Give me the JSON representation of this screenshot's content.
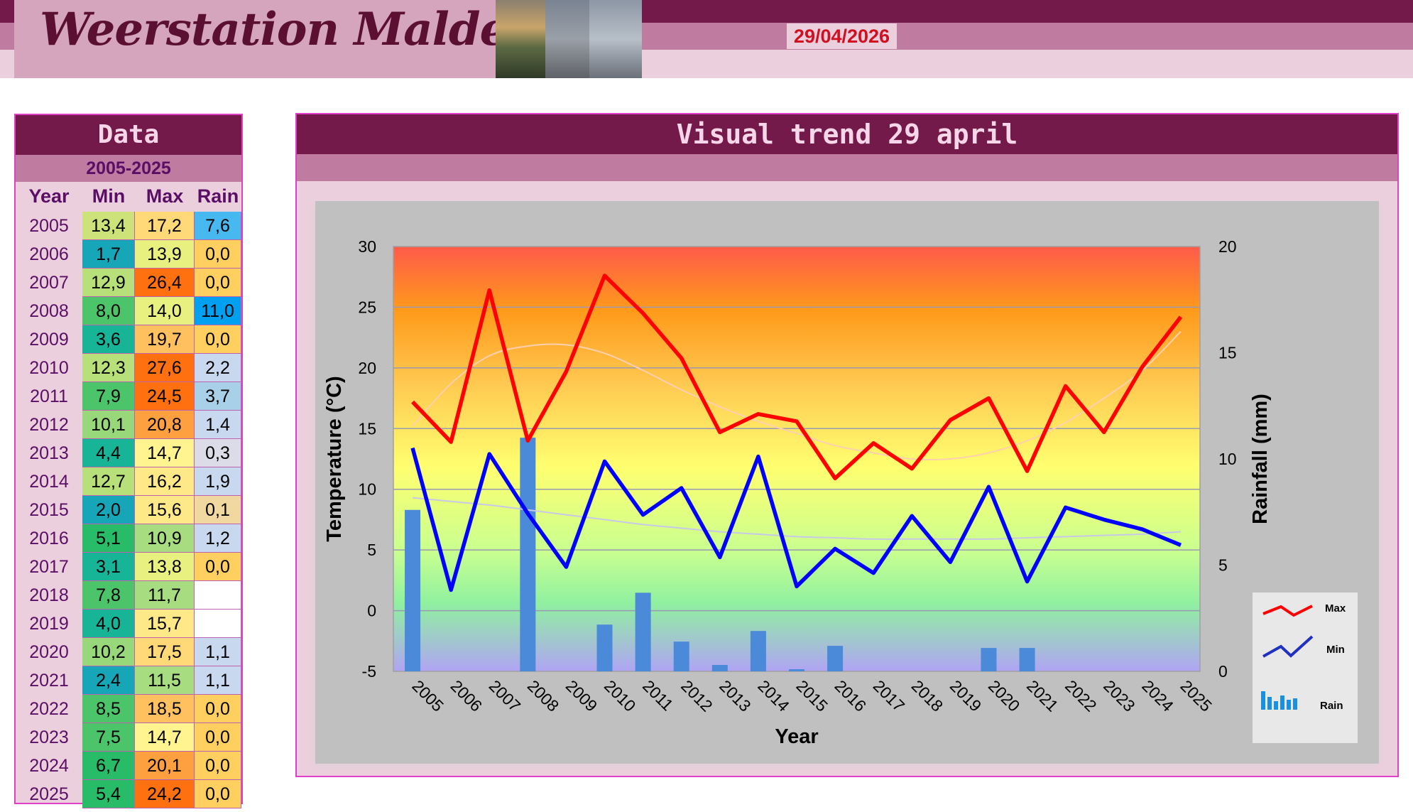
{
  "header": {
    "site_title": "Weerstation Malderen",
    "date": "29/04/2026"
  },
  "data_panel": {
    "title": "Data",
    "range": "2005-2025",
    "columns": [
      "Year",
      "Min",
      "Max",
      "Rain"
    ],
    "rows": [
      {
        "year": "2005",
        "min": "13,4",
        "max": "17,2",
        "rain": "7,6"
      },
      {
        "year": "2006",
        "min": "1,7",
        "max": "13,9",
        "rain": "0,0"
      },
      {
        "year": "2007",
        "min": "12,9",
        "max": "26,4",
        "rain": "0,0"
      },
      {
        "year": "2008",
        "min": "8,0",
        "max": "14,0",
        "rain": "11,0"
      },
      {
        "year": "2009",
        "min": "3,6",
        "max": "19,7",
        "rain": "0,0"
      },
      {
        "year": "2010",
        "min": "12,3",
        "max": "27,6",
        "rain": "2,2"
      },
      {
        "year": "2011",
        "min": "7,9",
        "max": "24,5",
        "rain": "3,7"
      },
      {
        "year": "2012",
        "min": "10,1",
        "max": "20,8",
        "rain": "1,4"
      },
      {
        "year": "2013",
        "min": "4,4",
        "max": "14,7",
        "rain": "0,3"
      },
      {
        "year": "2014",
        "min": "12,7",
        "max": "16,2",
        "rain": "1,9"
      },
      {
        "year": "2015",
        "min": "2,0",
        "max": "15,6",
        "rain": "0,1"
      },
      {
        "year": "2016",
        "min": "5,1",
        "max": "10,9",
        "rain": "1,2"
      },
      {
        "year": "2017",
        "min": "3,1",
        "max": "13,8",
        "rain": "0,0"
      },
      {
        "year": "2018",
        "min": "7,8",
        "max": "11,7",
        "rain": ""
      },
      {
        "year": "2019",
        "min": "4,0",
        "max": "15,7",
        "rain": ""
      },
      {
        "year": "2020",
        "min": "10,2",
        "max": "17,5",
        "rain": "1,1"
      },
      {
        "year": "2021",
        "min": "2,4",
        "max": "11,5",
        "rain": "1,1"
      },
      {
        "year": "2022",
        "min": "8,5",
        "max": "18,5",
        "rain": "0,0"
      },
      {
        "year": "2023",
        "min": "7,5",
        "max": "14,7",
        "rain": "0,0"
      },
      {
        "year": "2024",
        "min": "6,7",
        "max": "20,1",
        "rain": "0,0"
      },
      {
        "year": "2025",
        "min": "5,4",
        "max": "24,2",
        "rain": "0,0"
      }
    ]
  },
  "chart_panel": {
    "title": "Visual trend 29 april"
  },
  "chart_data": {
    "type": "line",
    "title": "Visual trend 29 april",
    "xlabel": "Year",
    "ylabel": "Temperature (°C)",
    "y2label": "Rainfall (mm)",
    "ylim": [
      -5,
      30
    ],
    "y2lim": [
      0,
      20
    ],
    "y_ticks": [
      -5,
      0,
      5,
      10,
      15,
      20,
      25,
      30
    ],
    "y2_ticks": [
      0,
      5,
      10,
      15,
      20
    ],
    "categories": [
      "2005",
      "2006",
      "2007",
      "2008",
      "2009",
      "2010",
      "2011",
      "2012",
      "2013",
      "2014",
      "2015",
      "2016",
      "2017",
      "2018",
      "2019",
      "2020",
      "2021",
      "2022",
      "2023",
      "2024",
      "2025"
    ],
    "series": [
      {
        "name": "Max",
        "type": "line",
        "axis": "left",
        "color": "#ff0000",
        "values": [
          17.2,
          13.9,
          26.4,
          14.0,
          19.7,
          27.6,
          24.5,
          20.8,
          14.7,
          16.2,
          15.6,
          10.9,
          13.8,
          11.7,
          15.7,
          17.5,
          11.5,
          18.5,
          14.7,
          20.1,
          24.2
        ]
      },
      {
        "name": "Min",
        "type": "line",
        "axis": "left",
        "color": "#0000ff",
        "values": [
          13.4,
          1.7,
          12.9,
          8.0,
          3.6,
          12.3,
          7.9,
          10.1,
          4.4,
          12.7,
          2.0,
          5.1,
          3.1,
          7.8,
          4.0,
          10.2,
          2.4,
          8.5,
          7.5,
          6.7,
          5.4
        ]
      },
      {
        "name": "Rain",
        "type": "bar",
        "axis": "right",
        "color": "#4a8ad8",
        "values": [
          7.6,
          0.0,
          0.0,
          11.0,
          0.0,
          2.2,
          3.7,
          1.4,
          0.3,
          1.9,
          0.1,
          1.2,
          0.0,
          null,
          null,
          1.1,
          1.1,
          0.0,
          0.0,
          0.0,
          0.0
        ]
      }
    ],
    "trendlines": [
      {
        "of": "Max",
        "color": "#ffd0b0",
        "values": [
          15.2,
          18.7,
          21.0,
          21.8,
          21.9,
          21.2,
          19.8,
          18.2,
          16.8,
          15.6,
          14.6,
          13.6,
          13.0,
          12.5,
          12.5,
          13.0,
          14.0,
          15.5,
          17.5,
          19.8,
          23.0
        ]
      },
      {
        "of": "Min",
        "color": "#c8c8e8",
        "values": [
          9.3,
          9.0,
          8.7,
          8.3,
          7.9,
          7.5,
          7.1,
          6.8,
          6.5,
          6.3,
          6.1,
          6.0,
          5.9,
          5.9,
          5.9,
          5.9,
          6.0,
          6.1,
          6.2,
          6.3,
          6.5
        ]
      }
    ],
    "legend_position": "bottom-right",
    "grid": true
  }
}
